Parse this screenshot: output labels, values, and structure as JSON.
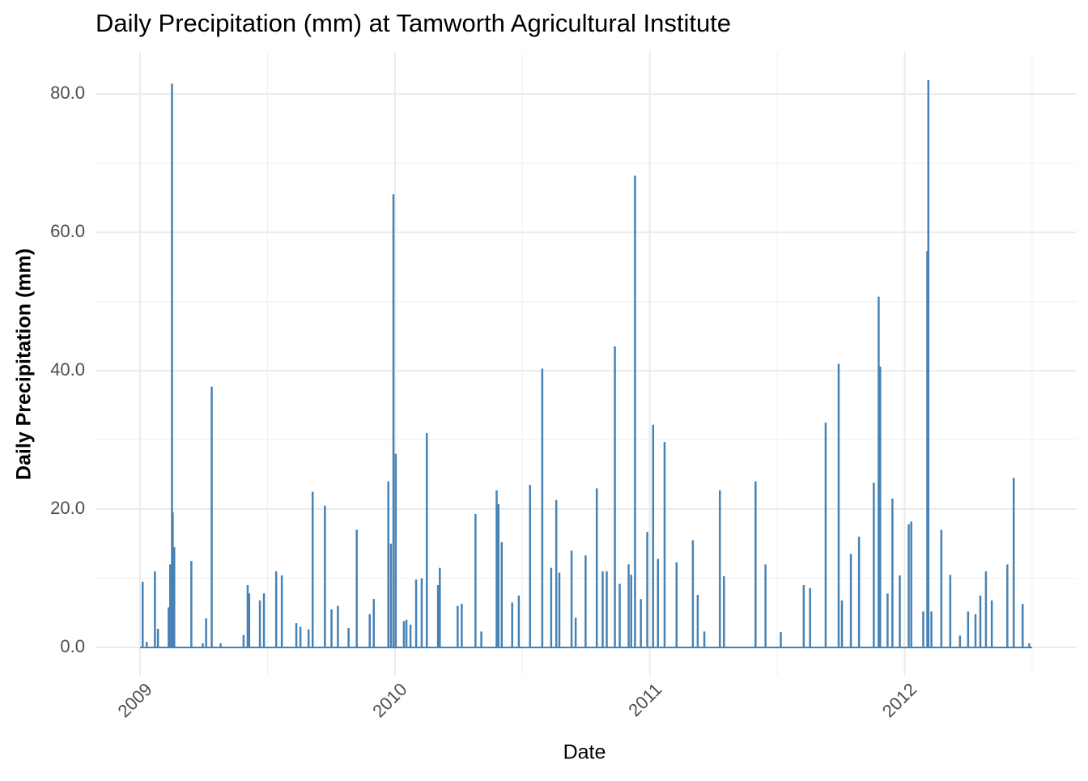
{
  "chart_data": {
    "type": "spike",
    "title": "Daily Precipitation (mm) at Tamworth Agricultural Institute",
    "x_label": "Date",
    "y_label": "Daily Precipitation (mm)",
    "color": "#4682b4",
    "grid": true,
    "xlim": [
      2008.825,
      2012.675
    ],
    "xticks": [
      2009,
      2010,
      2011,
      2012
    ],
    "minor_xticks": [
      2009.5,
      2010.5,
      2011.5,
      2012.5
    ],
    "ylim": [
      -4.1,
      86.1
    ],
    "yticks": [
      {
        "value": 0,
        "label": "0.0"
      },
      {
        "value": 20,
        "label": "20.0"
      },
      {
        "value": 40,
        "label": "40.0"
      },
      {
        "value": 60,
        "label": "60.0"
      },
      {
        "value": 80,
        "label": "80.0"
      }
    ],
    "minor_yticks": [
      10,
      30,
      50,
      70
    ],
    "x": [
      2009.0,
      2009.01,
      2009.026,
      2009.058,
      2009.07,
      2009.112,
      2009.118,
      2009.125,
      2009.128,
      2009.134,
      2009.201,
      2009.246,
      2009.259,
      2009.281,
      2009.316,
      2009.406,
      2009.422,
      2009.428,
      2009.47,
      2009.486,
      2009.534,
      2009.556,
      2009.613,
      2009.629,
      2009.661,
      2009.677,
      2009.725,
      2009.751,
      2009.776,
      2009.818,
      2009.85,
      2009.901,
      2009.917,
      2009.974,
      2009.984,
      2009.994,
      2010.003,
      2010.035,
      2010.045,
      2010.061,
      2010.083,
      2010.105,
      2010.125,
      2010.169,
      2010.176,
      2010.246,
      2010.262,
      2010.316,
      2010.339,
      2010.399,
      2010.406,
      2010.419,
      2010.46,
      2010.486,
      2010.53,
      2010.578,
      2010.613,
      2010.633,
      2010.645,
      2010.693,
      2010.709,
      2010.748,
      2010.792,
      2010.815,
      2010.831,
      2010.863,
      2010.882,
      2010.917,
      2010.927,
      2010.942,
      2010.965,
      2010.99,
      2011.013,
      2011.032,
      2011.058,
      2011.105,
      2011.169,
      2011.188,
      2011.214,
      2011.275,
      2011.291,
      2011.415,
      2011.454,
      2011.514,
      2011.604,
      2011.629,
      2011.69,
      2011.741,
      2011.754,
      2011.789,
      2011.821,
      2011.879,
      2011.898,
      2011.904,
      2011.933,
      2011.952,
      2011.981,
      2012.016,
      2012.026,
      2012.073,
      2012.089,
      2012.093,
      2012.105,
      2012.144,
      2012.179,
      2012.217,
      2012.249,
      2012.278,
      2012.297,
      2012.319,
      2012.342,
      2012.403,
      2012.428,
      2012.463,
      2012.489,
      2012.5
    ],
    "values": [
      0,
      9.5,
      0.8,
      11,
      2.7,
      5.8,
      12,
      81.5,
      19.5,
      14.5,
      12.5,
      0.6,
      4.2,
      37.7,
      0.6,
      1.8,
      9,
      7.8,
      6.8,
      7.8,
      11,
      10.4,
      3.5,
      3,
      2.6,
      22.5,
      20.5,
      5.5,
      6,
      2.8,
      17,
      4.8,
      7,
      24,
      15,
      65.5,
      28,
      3.8,
      4,
      3.3,
      9.8,
      10,
      31,
      9,
      11.5,
      6,
      6.3,
      19.3,
      2.3,
      22.7,
      20.7,
      15.2,
      6.5,
      7.5,
      23.5,
      40.3,
      11.5,
      21.3,
      10.8,
      14,
      4.3,
      13.3,
      23,
      11,
      11,
      43.5,
      9.2,
      12,
      10.5,
      68.2,
      7,
      16.7,
      32.2,
      12.8,
      29.7,
      12.3,
      15.5,
      7.6,
      2.3,
      22.7,
      10.3,
      24,
      12,
      2.2,
      9,
      8.6,
      32.5,
      41,
      6.8,
      13.5,
      16,
      23.8,
      50.7,
      40.6,
      7.8,
      21.5,
      10.4,
      17.8,
      18.2,
      5.2,
      57.3,
      82,
      5.2,
      17,
      10.5,
      1.7,
      5.2,
      4.8,
      7.5,
      11,
      6.8,
      12,
      24.5,
      6.3,
      0.6,
      0
    ]
  }
}
